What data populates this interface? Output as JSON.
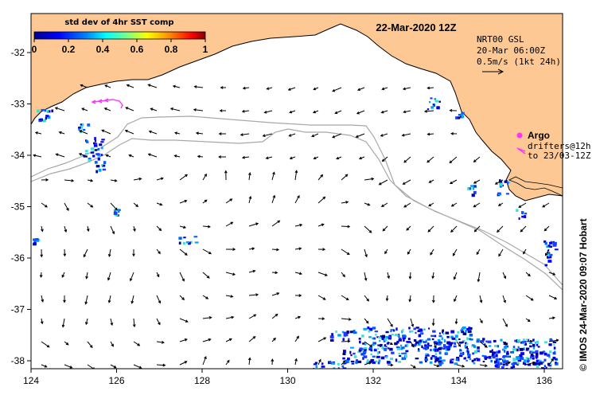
{
  "map": {
    "title": "22-Mar-2020 12Z",
    "colors": {
      "land": "#fdc893",
      "coast": "#000000",
      "bathy": "#a8a8a8",
      "argo": "#ff33ff",
      "drifter": "#ff33ff",
      "ocean": "#ffffff"
    },
    "legend": {
      "title": "std dev of 4hr SST comp",
      "ticks": [
        "0",
        "0.2",
        "0.4",
        "0.6",
        "0.8",
        "1"
      ]
    },
    "info": {
      "line1": "NRT00 GSL",
      "line2": "20-Mar 06:00Z",
      "line3": "0.5m/s (1kt 24h)"
    },
    "argo": {
      "label": "Argo",
      "drifters_line1": "drifters@12h",
      "drifters_line2": "to 23/03-12Z"
    },
    "credit": "© IMOS 24-Mar-2020 09:07 Hobart",
    "axes": {
      "x_ticks": [
        "124",
        "126",
        "128",
        "130",
        "132",
        "134",
        "136"
      ],
      "y_ticks": [
        "-32",
        "-33",
        "-34",
        "-35",
        "-36",
        "-37",
        "-38"
      ]
    }
  }
}
